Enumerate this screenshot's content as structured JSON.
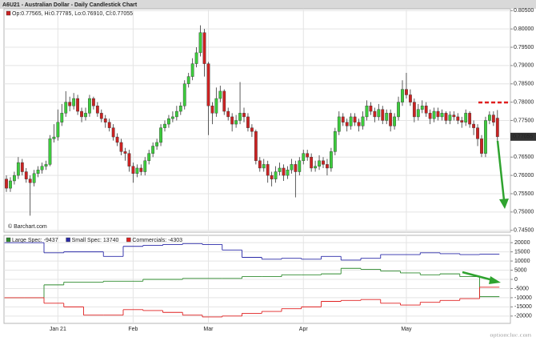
{
  "chart_data": [
    {
      "type": "candlestick",
      "title": "A6U21 - Australian Dollar - Daily Candlestick Chart",
      "ohlc_label": "Op:0.77565, Hi:0.77785, Lo:0.76910, Cl:0.77055",
      "source": "© Barchart.com",
      "last_label": "0.77055",
      "up_color": "#3ccc3c",
      "down_color": "#cc2222",
      "ylim": [
        0.7445,
        0.8055
      ],
      "yticks": [
        {
          "value": 0.805,
          "label": "0.80500"
        },
        {
          "value": 0.8,
          "label": "0.80000"
        },
        {
          "value": 0.795,
          "label": "0.79500"
        },
        {
          "value": 0.79,
          "label": "0.79000"
        },
        {
          "value": 0.785,
          "label": "0.78500"
        },
        {
          "value": 0.78,
          "label": "0.78000"
        },
        {
          "value": 0.775,
          "label": "0.77500"
        },
        {
          "value": 0.77,
          "label": "0.77000"
        },
        {
          "value": 0.765,
          "label": "0.76500"
        },
        {
          "value": 0.76,
          "label": "0.76000"
        },
        {
          "value": 0.755,
          "label": "0.75500"
        },
        {
          "value": 0.75,
          "label": "0.75000"
        },
        {
          "value": 0.745,
          "label": "0.74500"
        }
      ],
      "grid": true,
      "categories": [
        null,
        null,
        null,
        null,
        null,
        null,
        null,
        null,
        null,
        null,
        null,
        null,
        null,
        "Jan 21",
        null,
        null,
        null,
        null,
        null,
        null,
        null,
        null,
        null,
        null,
        null,
        null,
        null,
        null,
        null,
        null,
        null,
        null,
        "Feb",
        null,
        null,
        null,
        null,
        null,
        null,
        null,
        null,
        null,
        null,
        null,
        null,
        null,
        null,
        null,
        null,
        null,
        null,
        "Mar",
        null,
        null,
        null,
        null,
        null,
        null,
        null,
        null,
        null,
        null,
        null,
        null,
        null,
        null,
        null,
        null,
        null,
        null,
        null,
        null,
        null,
        null,
        null,
        "Apr",
        null,
        null,
        null,
        null,
        null,
        null,
        null,
        null,
        null,
        null,
        null,
        null,
        null,
        null,
        null,
        null,
        null,
        null,
        null,
        null,
        null,
        null,
        null,
        null,
        null,
        "May",
        null,
        null,
        null,
        null,
        null,
        null,
        null,
        null,
        null,
        null,
        null,
        null,
        null,
        null,
        null,
        null,
        null,
        null,
        null,
        null,
        null,
        null,
        null
      ],
      "open": [
        0.759,
        0.7565,
        0.7585,
        0.76,
        0.7635,
        0.761,
        0.759,
        0.758,
        0.7605,
        0.7615,
        0.7625,
        0.763,
        0.77,
        0.7705,
        0.7745,
        0.777,
        0.78,
        0.779,
        0.781,
        0.7775,
        0.776,
        0.777,
        0.781,
        0.779,
        0.777,
        0.7755,
        0.7745,
        0.773,
        0.7705,
        0.769,
        0.7665,
        0.766,
        0.7625,
        0.7605,
        0.762,
        0.761,
        0.764,
        0.766,
        0.768,
        0.769,
        0.773,
        0.774,
        0.7755,
        0.776,
        0.7775,
        0.779,
        0.785,
        0.787,
        0.7905,
        0.7935,
        0.799,
        0.7905,
        0.779,
        0.777,
        0.781,
        0.783,
        0.7775,
        0.776,
        0.774,
        0.775,
        0.777,
        0.776,
        0.773,
        0.772,
        0.764,
        0.762,
        0.763,
        0.76,
        0.759,
        0.761,
        0.762,
        0.76,
        0.7615,
        0.763,
        0.761,
        0.764,
        0.766,
        0.765,
        0.762,
        0.7625,
        0.764,
        0.763,
        0.762,
        0.7665,
        0.772,
        0.776,
        0.7745,
        0.7735,
        0.776,
        0.7745,
        0.7735,
        0.776,
        0.779,
        0.7775,
        0.776,
        0.778,
        0.775,
        0.777,
        0.7735,
        0.776,
        0.78,
        0.7835,
        0.782,
        0.78,
        0.776,
        0.778,
        0.779,
        0.777,
        0.7755,
        0.7775,
        0.776,
        0.777,
        0.775,
        0.7765,
        0.776,
        0.775,
        0.7745,
        0.777,
        0.774,
        0.773,
        0.77,
        0.766,
        0.775,
        0.7765,
        0.77565
      ],
      "high": [
        0.76,
        0.7595,
        0.761,
        0.765,
        0.7645,
        0.762,
        0.76,
        0.7615,
        0.7625,
        0.7635,
        0.764,
        0.771,
        0.774,
        0.778,
        0.7795,
        0.783,
        0.7815,
        0.7825,
        0.782,
        0.7785,
        0.7785,
        0.782,
        0.7815,
        0.78,
        0.778,
        0.7765,
        0.7755,
        0.774,
        0.7715,
        0.77,
        0.7675,
        0.767,
        0.7635,
        0.763,
        0.763,
        0.765,
        0.767,
        0.769,
        0.77,
        0.774,
        0.775,
        0.7765,
        0.7775,
        0.779,
        0.78,
        0.786,
        0.788,
        0.792,
        0.795,
        0.801,
        0.8,
        0.791,
        0.78,
        0.784,
        0.7845,
        0.7835,
        0.7785,
        0.777,
        0.7765,
        0.7855,
        0.7785,
        0.777,
        0.774,
        0.7725,
        0.765,
        0.7645,
        0.764,
        0.761,
        0.7625,
        0.7635,
        0.763,
        0.7625,
        0.7645,
        0.764,
        0.765,
        0.767,
        0.767,
        0.766,
        0.764,
        0.7655,
        0.765,
        0.7645,
        0.7675,
        0.773,
        0.7775,
        0.777,
        0.7755,
        0.777,
        0.777,
        0.7755,
        0.7775,
        0.7805,
        0.78,
        0.7785,
        0.7795,
        0.779,
        0.778,
        0.778,
        0.777,
        0.7815,
        0.786,
        0.788,
        0.7835,
        0.781,
        0.7795,
        0.7805,
        0.78,
        0.778,
        0.7785,
        0.7785,
        0.778,
        0.7775,
        0.7775,
        0.7775,
        0.777,
        0.776,
        0.778,
        0.7775,
        0.775,
        0.774,
        0.771,
        0.776,
        0.7775,
        0.7775,
        0.77785
      ],
      "low": [
        0.7555,
        0.7555,
        0.7575,
        0.759,
        0.76,
        0.758,
        0.749,
        0.757,
        0.7595,
        0.7605,
        0.7615,
        0.7625,
        0.769,
        0.7695,
        0.7735,
        0.776,
        0.7775,
        0.778,
        0.7765,
        0.7745,
        0.775,
        0.776,
        0.778,
        0.776,
        0.7745,
        0.773,
        0.772,
        0.7695,
        0.768,
        0.7655,
        0.764,
        0.761,
        0.758,
        0.7595,
        0.76,
        0.76,
        0.763,
        0.765,
        0.767,
        0.768,
        0.772,
        0.773,
        0.7745,
        0.775,
        0.7765,
        0.778,
        0.784,
        0.786,
        0.7895,
        0.7925,
        0.787,
        0.771,
        0.774,
        0.776,
        0.78,
        0.7765,
        0.775,
        0.772,
        0.773,
        0.774,
        0.7745,
        0.772,
        0.7705,
        0.763,
        0.761,
        0.761,
        0.758,
        0.757,
        0.758,
        0.76,
        0.7585,
        0.759,
        0.7605,
        0.754,
        0.76,
        0.763,
        0.764,
        0.761,
        0.761,
        0.7615,
        0.762,
        0.76,
        0.761,
        0.7655,
        0.771,
        0.7735,
        0.772,
        0.7725,
        0.7735,
        0.772,
        0.7725,
        0.775,
        0.7765,
        0.7745,
        0.775,
        0.774,
        0.774,
        0.772,
        0.7725,
        0.775,
        0.779,
        0.781,
        0.779,
        0.7745,
        0.775,
        0.777,
        0.776,
        0.774,
        0.7745,
        0.775,
        0.775,
        0.774,
        0.774,
        0.775,
        0.774,
        0.773,
        0.7735,
        0.773,
        0.771,
        0.768,
        0.765,
        0.765,
        0.774,
        0.7735,
        0.7691
      ],
      "close": [
        0.7565,
        0.7585,
        0.76,
        0.7635,
        0.761,
        0.759,
        0.758,
        0.7605,
        0.7615,
        0.7625,
        0.763,
        0.77,
        0.7705,
        0.7745,
        0.777,
        0.78,
        0.779,
        0.781,
        0.7775,
        0.776,
        0.777,
        0.781,
        0.779,
        0.777,
        0.7755,
        0.7745,
        0.773,
        0.7705,
        0.769,
        0.7665,
        0.766,
        0.7625,
        0.7605,
        0.762,
        0.761,
        0.764,
        0.766,
        0.768,
        0.769,
        0.773,
        0.774,
        0.7755,
        0.776,
        0.7775,
        0.779,
        0.785,
        0.787,
        0.7905,
        0.7935,
        0.799,
        0.7905,
        0.779,
        0.777,
        0.781,
        0.783,
        0.7775,
        0.776,
        0.774,
        0.775,
        0.777,
        0.776,
        0.773,
        0.772,
        0.764,
        0.762,
        0.763,
        0.76,
        0.759,
        0.761,
        0.762,
        0.76,
        0.7615,
        0.763,
        0.761,
        0.764,
        0.766,
        0.765,
        0.762,
        0.7625,
        0.764,
        0.763,
        0.762,
        0.7665,
        0.772,
        0.776,
        0.7745,
        0.7735,
        0.776,
        0.7745,
        0.7735,
        0.776,
        0.779,
        0.7775,
        0.776,
        0.778,
        0.775,
        0.777,
        0.7735,
        0.776,
        0.78,
        0.7835,
        0.782,
        0.78,
        0.776,
        0.778,
        0.779,
        0.777,
        0.7755,
        0.7775,
        0.776,
        0.777,
        0.775,
        0.7765,
        0.776,
        0.775,
        0.7745,
        0.777,
        0.774,
        0.773,
        0.77,
        0.766,
        0.775,
        0.7765,
        0.7745,
        0.77055
      ]
    },
    {
      "type": "step",
      "ylim": [
        -24000,
        24000
      ],
      "yticks": [
        20000,
        15000,
        10000,
        5000,
        0,
        -5000,
        -10000,
        -15000,
        -20000
      ],
      "grid": true,
      "series": [
        {
          "name": "Large Spec: -9437",
          "color": "#2e8b2e",
          "values": [
            -10000,
            -10000,
            -3000,
            -1500,
            -1500,
            -1000,
            -1000,
            0,
            0,
            500,
            500,
            500,
            1500,
            1500,
            2500,
            2500,
            3000,
            6000,
            5500,
            4500,
            3500,
            2500,
            3000,
            1500,
            -9437
          ]
        },
        {
          "name": "Small Spec: 13740",
          "color": "#2a2aa8",
          "values": [
            20000,
            20000,
            14500,
            15000,
            15000,
            12500,
            18000,
            18500,
            19000,
            19500,
            19000,
            16000,
            12000,
            11000,
            11500,
            11000,
            12500,
            10500,
            11500,
            13500,
            13500,
            14500,
            14000,
            13500,
            13740
          ]
        },
        {
          "name": "Commercials: -4303",
          "color": "#e02020",
          "values": [
            -10000,
            -10000,
            -13000,
            -15000,
            -19500,
            -19500,
            -16500,
            -17000,
            -18000,
            -19500,
            -20500,
            -20000,
            -18500,
            -17500,
            -16000,
            -15000,
            -12000,
            -11500,
            -11000,
            -13000,
            -14000,
            -12500,
            -11500,
            -10500,
            -4303
          ]
        }
      ]
    }
  ],
  "watermark": "optionclue.com"
}
